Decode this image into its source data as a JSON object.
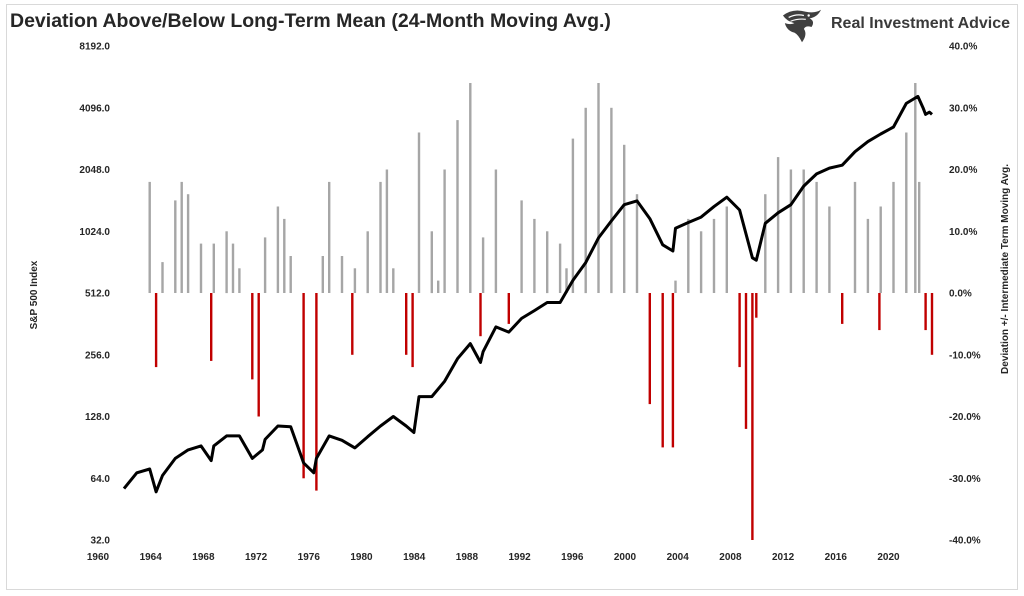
{
  "header": {
    "title": "Deviation Above/Below Long-Term Mean (24-Month Moving Avg.)",
    "brand": "Real Investment Advice"
  },
  "colors": {
    "positive_bar": "#a6a6a6",
    "negative_bar": "#c00000",
    "line": "#000000"
  },
  "chart_data": {
    "type": "bar",
    "xlabel": "",
    "ylabel_left": "S&P 500 Index",
    "ylabel_right": "Deviation +/- Intermediate Term Moving Avg.",
    "xlim": [
      1960,
      2023
    ],
    "x_ticks": [
      "1960",
      "1964",
      "1968",
      "1972",
      "1976",
      "1980",
      "1984",
      "1988",
      "1992",
      "1996",
      "2000",
      "2004",
      "2008",
      "2012",
      "2016",
      "2020"
    ],
    "y_left_scale": "log2",
    "y_left_lim": [
      32,
      8192
    ],
    "y_left_ticks": [
      "8192.0",
      "4096.0",
      "2048.0",
      "1024.0",
      "512.0",
      "256.0",
      "128.0",
      "64.0",
      "32.0"
    ],
    "y_right_lim": [
      -40,
      40
    ],
    "y_right_ticks": [
      "40.0%",
      "30.0%",
      "20.0%",
      "10.0%",
      "0.0%",
      "-10.0%",
      "-20.0%",
      "-30.0%",
      "-40.0%"
    ],
    "grid": false,
    "legend": "none",
    "series": [
      {
        "type": "line",
        "axis": "left",
        "points": [
          [
            1960,
            57
          ],
          [
            1961,
            68
          ],
          [
            1962,
            71
          ],
          [
            1962.5,
            55
          ],
          [
            1963,
            66
          ],
          [
            1964,
            80
          ],
          [
            1965,
            88
          ],
          [
            1966,
            92
          ],
          [
            1966.8,
            78
          ],
          [
            1967,
            92
          ],
          [
            1968,
            103
          ],
          [
            1969,
            103
          ],
          [
            1970,
            80
          ],
          [
            1970.8,
            88
          ],
          [
            1971,
            99
          ],
          [
            1972,
            115
          ],
          [
            1973,
            114
          ],
          [
            1974,
            76
          ],
          [
            1974.8,
            68
          ],
          [
            1975,
            80
          ],
          [
            1976,
            103
          ],
          [
            1977,
            98
          ],
          [
            1978,
            90
          ],
          [
            1979,
            102
          ],
          [
            1980,
            115
          ],
          [
            1981,
            128
          ],
          [
            1982,
            115
          ],
          [
            1982.6,
            107
          ],
          [
            1983,
            160
          ],
          [
            1984,
            160
          ],
          [
            1985,
            190
          ],
          [
            1986,
            245
          ],
          [
            1987,
            290
          ],
          [
            1987.8,
            235
          ],
          [
            1988,
            265
          ],
          [
            1989,
            350
          ],
          [
            1990,
            330
          ],
          [
            1991,
            385
          ],
          [
            1992,
            420
          ],
          [
            1993,
            460
          ],
          [
            1994,
            460
          ],
          [
            1995,
            590
          ],
          [
            1996,
            720
          ],
          [
            1997,
            950
          ],
          [
            1998,
            1150
          ],
          [
            1999,
            1380
          ],
          [
            2000,
            1440
          ],
          [
            2001,
            1180
          ],
          [
            2002,
            880
          ],
          [
            2002.8,
            820
          ],
          [
            2003,
            1060
          ],
          [
            2004,
            1130
          ],
          [
            2005,
            1200
          ],
          [
            2006,
            1350
          ],
          [
            2007,
            1500
          ],
          [
            2008,
            1300
          ],
          [
            2009,
            760
          ],
          [
            2009.3,
            740
          ],
          [
            2010,
            1120
          ],
          [
            2011,
            1260
          ],
          [
            2012,
            1380
          ],
          [
            2013,
            1700
          ],
          [
            2014,
            1950
          ],
          [
            2015,
            2080
          ],
          [
            2016,
            2150
          ],
          [
            2017,
            2500
          ],
          [
            2018,
            2800
          ],
          [
            2019,
            3050
          ],
          [
            2020,
            3300
          ],
          [
            2021,
            4300
          ],
          [
            2021.9,
            4650
          ],
          [
            2022.3,
            4100
          ],
          [
            2022.5,
            3800
          ],
          [
            2022.8,
            3900
          ],
          [
            2023,
            3800
          ]
        ]
      },
      {
        "type": "bar",
        "axis": "right",
        "x": [
          1960.0,
          1962.0,
          1962.5,
          1963.0,
          1964.0,
          1964.5,
          1965.0,
          1966.0,
          1966.8,
          1967.0,
          1968.0,
          1968.5,
          1969.0,
          1970.0,
          1970.5,
          1971.0,
          1972.0,
          1972.5,
          1973.0,
          1974.0,
          1975.0,
          1975.5,
          1976.0,
          1977.0,
          1977.8,
          1978.0,
          1979.0,
          1980.0,
          1980.5,
          1981.0,
          1982.0,
          1982.5,
          1983.0,
          1984.0,
          1984.5,
          1985.0,
          1986.0,
          1987.0,
          1987.8,
          1988.0,
          1989.0,
          1990.0,
          1991.0,
          1992.0,
          1993.0,
          1994.0,
          1994.5,
          1995.0,
          1996.0,
          1997.0,
          1998.0,
          1999.0,
          2000.0,
          2001.0,
          2002.0,
          2002.8,
          2003.0,
          2004.0,
          2005.0,
          2006.0,
          2007.0,
          2008.0,
          2008.5,
          2009.0,
          2009.3,
          2010.0,
          2011.0,
          2012.0,
          2013.0,
          2014.0,
          2015.0,
          2016.0,
          2017.0,
          2018.0,
          2018.9,
          2019.0,
          2020.0,
          2021.0,
          2021.7,
          2022.0,
          2022.5,
          2023.0
        ],
        "values": [
          0.0,
          18.0,
          -12.0,
          5.0,
          15.0,
          18.0,
          16.0,
          8.0,
          -11.0,
          8.0,
          10.0,
          8.0,
          4.0,
          -14.0,
          -20.0,
          9.0,
          14.0,
          12.0,
          6.0,
          -30.0,
          -32.0,
          6.0,
          18.0,
          6.0,
          -10.0,
          4.0,
          10.0,
          18.0,
          20.0,
          4.0,
          -10.0,
          -12.0,
          26.0,
          10.0,
          2.0,
          20.0,
          28.0,
          34.0,
          -7.0,
          9.0,
          20.0,
          -5.0,
          15.0,
          12.0,
          10.0,
          8.0,
          4.0,
          25.0,
          30.0,
          34.0,
          30.0,
          24.0,
          16.0,
          -18.0,
          -25.0,
          -25.0,
          2.0,
          12.0,
          10.0,
          12.0,
          14.0,
          -12.0,
          -22.0,
          -40.0,
          -4.0,
          16.0,
          22.0,
          20.0,
          20.0,
          18.0,
          14.0,
          -5.0,
          18.0,
          12.0,
          -6.0,
          14.0,
          18.0,
          26.0,
          34.0,
          18.0,
          -6.0,
          -10.0
        ]
      }
    ]
  }
}
